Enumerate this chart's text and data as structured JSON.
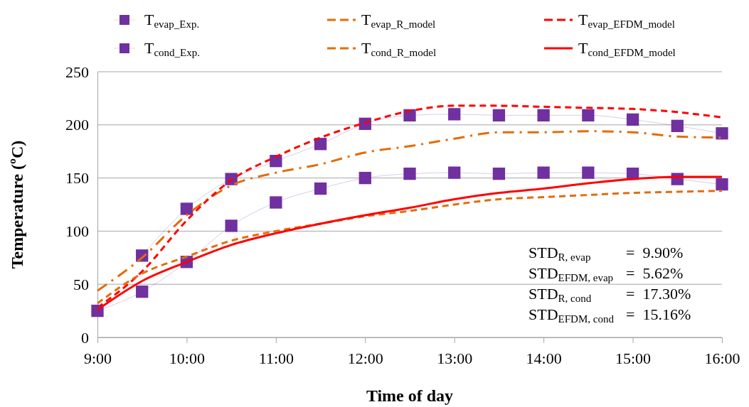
{
  "chart_data": {
    "type": "line",
    "xlabel": "Time of day",
    "ylabel": "Temperature (ºC)",
    "x": [
      9,
      9.5,
      10,
      10.5,
      11,
      11.5,
      12,
      12.5,
      13,
      13.5,
      14,
      14.5,
      15,
      15.5,
      16
    ],
    "xlim": [
      9,
      16
    ],
    "xticks": [
      {
        "value": 9,
        "label": "9:00"
      },
      {
        "value": 10,
        "label": "10:00"
      },
      {
        "value": 11,
        "label": "11:00"
      },
      {
        "value": 12,
        "label": "12:00"
      },
      {
        "value": 13,
        "label": "13:00"
      },
      {
        "value": 14,
        "label": "14:00"
      },
      {
        "value": 15,
        "label": "15:00"
      },
      {
        "value": 16,
        "label": "16:00"
      }
    ],
    "ylim": [
      0,
      250
    ],
    "yticks": [
      0,
      50,
      100,
      150,
      200,
      250
    ],
    "grid": "y",
    "legend": "top",
    "series": [
      {
        "name": "T$_{evap_Exp.}$",
        "line_style": "solid",
        "color": "#7030a0",
        "marker": "square",
        "values": [
          null,
          77,
          121,
          149,
          166,
          182,
          201,
          209,
          210,
          209,
          209,
          209,
          205,
          199,
          192
        ]
      },
      {
        "name": "T$_{evap_R_model}$",
        "color": "#e36c09",
        "line_style": "dashdot",
        "values": [
          44,
          75,
          115,
          143,
          155,
          163,
          174,
          180,
          187,
          193,
          193,
          194,
          193,
          189,
          188
        ]
      },
      {
        "name": "T$_{evap_EFDM_model}$",
        "color": "#ff0000",
        "line_style": "dashed",
        "values": [
          28,
          62,
          110,
          148,
          170,
          188,
          202,
          213,
          218,
          218,
          217,
          216,
          215,
          212,
          207
        ]
      },
      {
        "name": "T$_{cond_Exp.}$",
        "line_style": "solid",
        "color": "#7030a0",
        "marker": "square",
        "values": [
          25,
          43,
          71,
          105,
          127,
          140,
          150,
          154,
          155,
          154,
          155,
          155,
          154,
          149,
          144
        ]
      },
      {
        "name": "T$_{cond_R_model}$",
        "color": "#e36c09",
        "line_style": "dashed",
        "values": [
          32,
          60,
          76,
          91,
          100,
          107,
          114,
          119,
          125,
          130,
          132,
          134,
          136,
          137,
          138
        ]
      },
      {
        "name": "T$_{cond_EFDM_model}$",
        "color": "#ff0000",
        "line_style": "solid",
        "values": [
          26,
          53,
          71,
          87,
          98,
          107,
          115,
          122,
          130,
          136,
          140,
          145,
          149,
          151,
          151
        ]
      }
    ],
    "annotations": [
      "STD$_{R, evap}$ = 9.90%",
      "STD$_{EFDM, evap}$ = 5.62%",
      "STD$_{R, cond}$ = 17.30%",
      "STD$_{EFDM, cond}$ = 15.16%"
    ]
  }
}
